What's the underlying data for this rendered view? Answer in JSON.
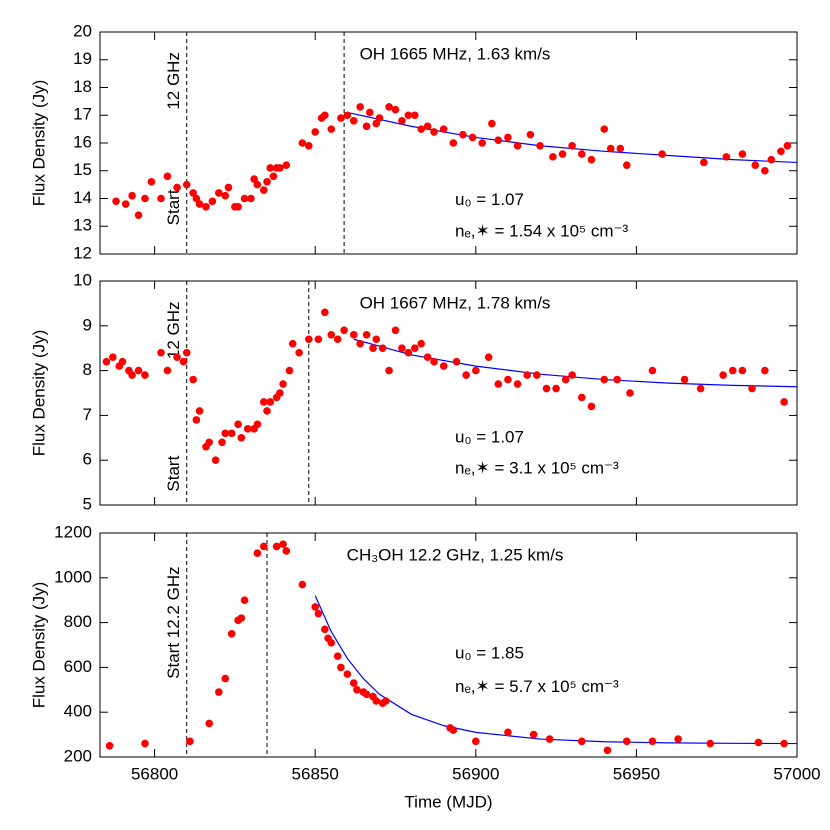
{
  "chart_data": [
    {
      "type": "scatter",
      "title": "OH 1665 MHz, 1.63 km/s",
      "ylabel": "Flux Density (Jy)",
      "annotations": [
        "u₀ = 1.07",
        "nₑ,✶ = 1.54 x 10⁵ cm⁻³"
      ],
      "vlines": [
        56810,
        56859
      ],
      "vline_labels": [
        "12 GHz",
        "Start"
      ],
      "xlim": [
        56783,
        57000
      ],
      "xticks": [
        56800,
        56850,
        56900,
        56950,
        57000
      ],
      "ylim": [
        12,
        20
      ],
      "yticks": [
        12,
        13,
        14,
        15,
        16,
        17,
        18,
        19,
        20
      ],
      "points": {
        "color": "#ff0000",
        "x": [
          56788,
          56791,
          56793,
          56795,
          56797,
          56799,
          56802,
          56804,
          56807,
          56810,
          56812,
          56813,
          56814,
          56816,
          56818,
          56820,
          56822,
          56823,
          56825,
          56826,
          56828,
          56830,
          56831,
          56832,
          56834,
          56835,
          56836,
          56837,
          56838,
          56839,
          56841,
          56846,
          56848,
          56850,
          56852,
          56853,
          56855,
          56858,
          56860,
          56862,
          56864,
          56866,
          56867,
          56869,
          56870,
          56873,
          56875,
          56877,
          56879,
          56881,
          56883,
          56885,
          56887,
          56890,
          56893,
          56896,
          56899,
          56902,
          56905,
          56907,
          56910,
          56913,
          56917,
          56920,
          56924,
          56927,
          56930,
          56933,
          56936,
          56940,
          56942,
          56945,
          56947,
          56958,
          56971,
          56978,
          56983,
          56987,
          56990,
          56992,
          56995,
          56997
        ],
        "values": [
          13.9,
          13.8,
          14.1,
          13.4,
          14.0,
          14.6,
          14.0,
          14.8,
          14.4,
          14.5,
          14.2,
          14.0,
          13.8,
          13.7,
          13.9,
          14.2,
          14.1,
          14.4,
          13.7,
          13.7,
          14.0,
          14.0,
          14.7,
          14.5,
          14.3,
          14.6,
          15.1,
          14.8,
          15.1,
          15.1,
          15.2,
          16.0,
          15.9,
          16.4,
          16.9,
          17.0,
          16.5,
          16.9,
          17.0,
          16.8,
          17.3,
          16.6,
          17.1,
          16.7,
          16.9,
          17.3,
          17.2,
          16.8,
          17.0,
          17.0,
          16.5,
          16.6,
          16.4,
          16.5,
          16.0,
          16.3,
          16.2,
          16.0,
          16.7,
          16.1,
          16.2,
          15.9,
          16.3,
          15.9,
          15.5,
          15.6,
          15.9,
          15.6,
          15.4,
          16.5,
          15.8,
          15.8,
          15.2,
          15.6,
          15.3,
          15.5,
          15.6,
          15.2,
          15.0,
          15.4,
          15.7,
          15.9
        ]
      },
      "fit": {
        "color": "#0000ff",
        "x": [
          56860,
          56880,
          56900,
          56920,
          56940,
          56960,
          56980,
          57000
        ],
        "values": [
          17.1,
          16.6,
          16.2,
          15.9,
          15.7,
          15.55,
          15.4,
          15.3
        ]
      }
    },
    {
      "type": "scatter",
      "title": "OH 1667 MHz, 1.78 km/s",
      "ylabel": "Flux Density (Jy)",
      "annotations": [
        "u₀ = 1.07",
        "nₑ,✶ = 3.1 x 10⁵ cm⁻³"
      ],
      "vlines": [
        56810,
        56848
      ],
      "vline_labels": [
        "12 GHz",
        "Start"
      ],
      "xlim": [
        56783,
        57000
      ],
      "xticks": [
        56800,
        56850,
        56900,
        56950,
        57000
      ],
      "ylim": [
        5,
        10
      ],
      "yticks": [
        5,
        6,
        7,
        8,
        9,
        10
      ],
      "points": {
        "color": "#ff0000",
        "x": [
          56785,
          56787,
          56789,
          56790,
          56792,
          56793,
          56795,
          56797,
          56802,
          56804,
          56807,
          56809,
          56810,
          56812,
          56813,
          56814,
          56816,
          56817,
          56819,
          56821,
          56822,
          56824,
          56826,
          56827,
          56829,
          56831,
          56832,
          56834,
          56835,
          56836,
          56838,
          56839,
          56840,
          56842,
          56843,
          56845,
          56848,
          56851,
          56853,
          56855,
          56857,
          56859,
          56862,
          56864,
          56866,
          56868,
          56869,
          56871,
          56873,
          56875,
          56877,
          56879,
          56881,
          56883,
          56885,
          56887,
          56890,
          56894,
          56897,
          56900,
          56904,
          56907,
          56910,
          56913,
          56916,
          56919,
          56922,
          56925,
          56928,
          56930,
          56933,
          56936,
          56940,
          56944,
          56948,
          56955,
          56965,
          56970,
          56977,
          56980,
          56983,
          56986,
          56990,
          56996
        ],
        "values": [
          8.2,
          8.3,
          8.1,
          8.2,
          8.0,
          7.9,
          8.0,
          7.9,
          8.4,
          8.0,
          8.3,
          8.2,
          8.4,
          7.8,
          6.9,
          7.1,
          6.3,
          6.4,
          6.0,
          6.4,
          6.6,
          6.6,
          6.8,
          6.5,
          6.7,
          6.7,
          6.8,
          7.3,
          7.1,
          7.3,
          7.4,
          7.5,
          7.7,
          8.0,
          8.6,
          8.4,
          8.7,
          8.7,
          9.3,
          8.8,
          8.7,
          8.9,
          8.8,
          8.6,
          8.8,
          8.5,
          8.7,
          8.5,
          8.0,
          8.9,
          8.5,
          8.4,
          8.5,
          8.6,
          8.3,
          8.2,
          8.1,
          8.2,
          7.9,
          8.0,
          8.3,
          7.7,
          7.8,
          7.7,
          7.9,
          7.9,
          7.6,
          7.6,
          7.8,
          7.9,
          7.4,
          7.2,
          7.8,
          7.8,
          7.5,
          8.0,
          7.8,
          7.6,
          7.9,
          8.0,
          8.0,
          7.6,
          8.0,
          7.3
        ]
      },
      "fit": {
        "color": "#0000ff",
        "x": [
          56862,
          56880,
          56900,
          56920,
          56940,
          56960,
          56980,
          57000
        ],
        "values": [
          8.7,
          8.35,
          8.1,
          7.92,
          7.8,
          7.72,
          7.67,
          7.64
        ]
      }
    },
    {
      "type": "scatter",
      "title": "CH₃OH 12.2 GHz, 1.25 km/s",
      "ylabel": "Flux Density (Jy)",
      "xlabel": "Time (MJD)",
      "annotations": [
        "u₀ = 1.85",
        "nₑ,✶ = 5.7 x 10⁵ cm⁻³"
      ],
      "vlines": [
        56810,
        56835
      ],
      "vline_labels": [
        "Start 12.2 GHz"
      ],
      "xlim": [
        56783,
        57000
      ],
      "xticks": [
        56800,
        56850,
        56900,
        56950,
        57000
      ],
      "ylim": [
        200,
        1200
      ],
      "yticks": [
        200,
        400,
        600,
        800,
        1000,
        1200
      ],
      "points": {
        "color": "#ff0000",
        "x": [
          56786,
          56797,
          56811,
          56817,
          56820,
          56822,
          56824,
          56826,
          56827,
          56828,
          56832,
          56834,
          56838,
          56840,
          56841,
          56846,
          56850,
          56851,
          56853,
          56854,
          56855,
          56857,
          56858,
          56860,
          56862,
          56863,
          56865,
          56866,
          56868,
          56869,
          56871,
          56872,
          56892,
          56893,
          56900,
          56910,
          56918,
          56923,
          56933,
          56941,
          56947,
          56955,
          56963,
          56973,
          56988,
          56996
        ],
        "values": [
          250,
          260,
          270,
          350,
          490,
          550,
          750,
          810,
          820,
          900,
          1110,
          1140,
          1140,
          1150,
          1120,
          970,
          870,
          840,
          770,
          730,
          710,
          650,
          600,
          570,
          530,
          500,
          490,
          480,
          470,
          450,
          440,
          450,
          330,
          320,
          270,
          310,
          300,
          280,
          270,
          230,
          270,
          270,
          280,
          260,
          265,
          260
        ]
      },
      "fit": {
        "color": "#0000ff",
        "x": [
          56850,
          56855,
          56860,
          56865,
          56870,
          56880,
          56890,
          56900,
          56920,
          56940,
          56960,
          56980,
          57000
        ],
        "values": [
          920,
          760,
          640,
          550,
          480,
          390,
          340,
          310,
          280,
          268,
          263,
          261,
          260
        ]
      }
    }
  ]
}
